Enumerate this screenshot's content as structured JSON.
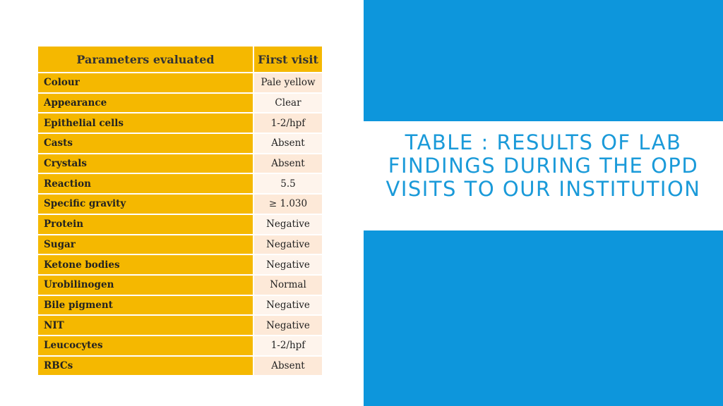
{
  "title": "Table : Results of lab findings during the OPD visits to our institution",
  "table": {
    "header": [
      "Parameters evaluated",
      "First visit"
    ],
    "rows": [
      [
        "Colour",
        "Pale yellow"
      ],
      [
        "Appearance",
        "Clear"
      ],
      [
        "Epithelial cells",
        "1-2/hpf"
      ],
      [
        "Casts",
        "Absent"
      ],
      [
        "Crystals",
        "Absent"
      ],
      [
        "Reaction",
        "5.5"
      ],
      [
        "Specific gravity",
        "≥ 1.030"
      ],
      [
        "Protein",
        "Negative"
      ],
      [
        "Sugar",
        "Negative"
      ],
      [
        "Ketone bodies",
        "Negative"
      ],
      [
        "Urobilinogen",
        "Normal"
      ],
      [
        "Bile pigment",
        "Negative"
      ],
      [
        "NIT",
        "Negative"
      ],
      [
        "Leucocytes",
        "1-2/hpf"
      ],
      [
        "RBCs",
        "Absent"
      ]
    ]
  }
}
